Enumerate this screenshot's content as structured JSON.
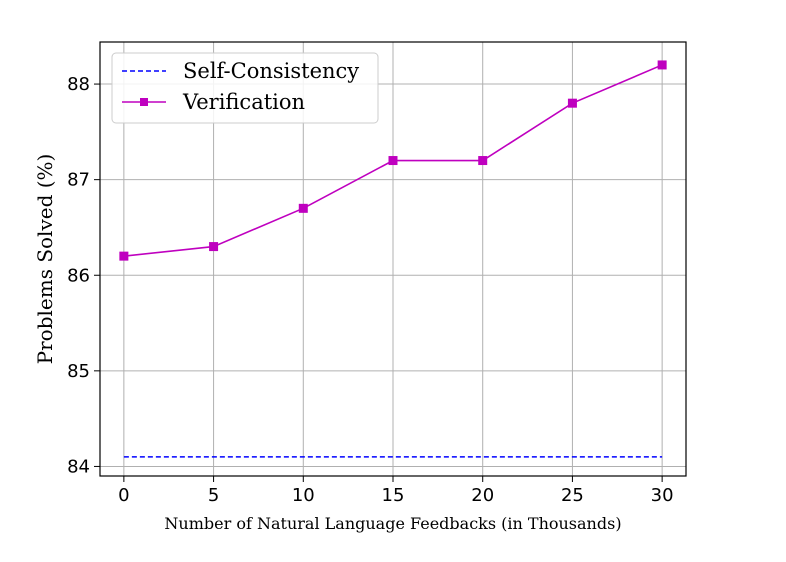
{
  "chart_data": {
    "type": "line",
    "xlabel": "Number of Natural Language Feedbacks (in Thousands)",
    "ylabel": "Problems Solved (%)",
    "xlim": [
      -1.33,
      31.33
    ],
    "ylim": [
      83.9,
      88.44
    ],
    "xticks": [
      0,
      5,
      10,
      15,
      20,
      25,
      30
    ],
    "yticks": [
      84,
      85,
      86,
      87,
      88
    ],
    "grid": true,
    "legend_position": "top-left",
    "series": [
      {
        "name": "Self-Consistency",
        "style": "dashed",
        "color": "#0000ff",
        "marker": "none",
        "x": [
          0,
          30
        ],
        "y": [
          84.1,
          84.1
        ]
      },
      {
        "name": "Verification",
        "style": "solid",
        "color": "#bf00bf",
        "marker": "square",
        "x": [
          0,
          5,
          10,
          15,
          20,
          25,
          30
        ],
        "y": [
          86.2,
          86.3,
          86.7,
          87.2,
          87.2,
          87.8,
          88.2
        ]
      }
    ]
  }
}
